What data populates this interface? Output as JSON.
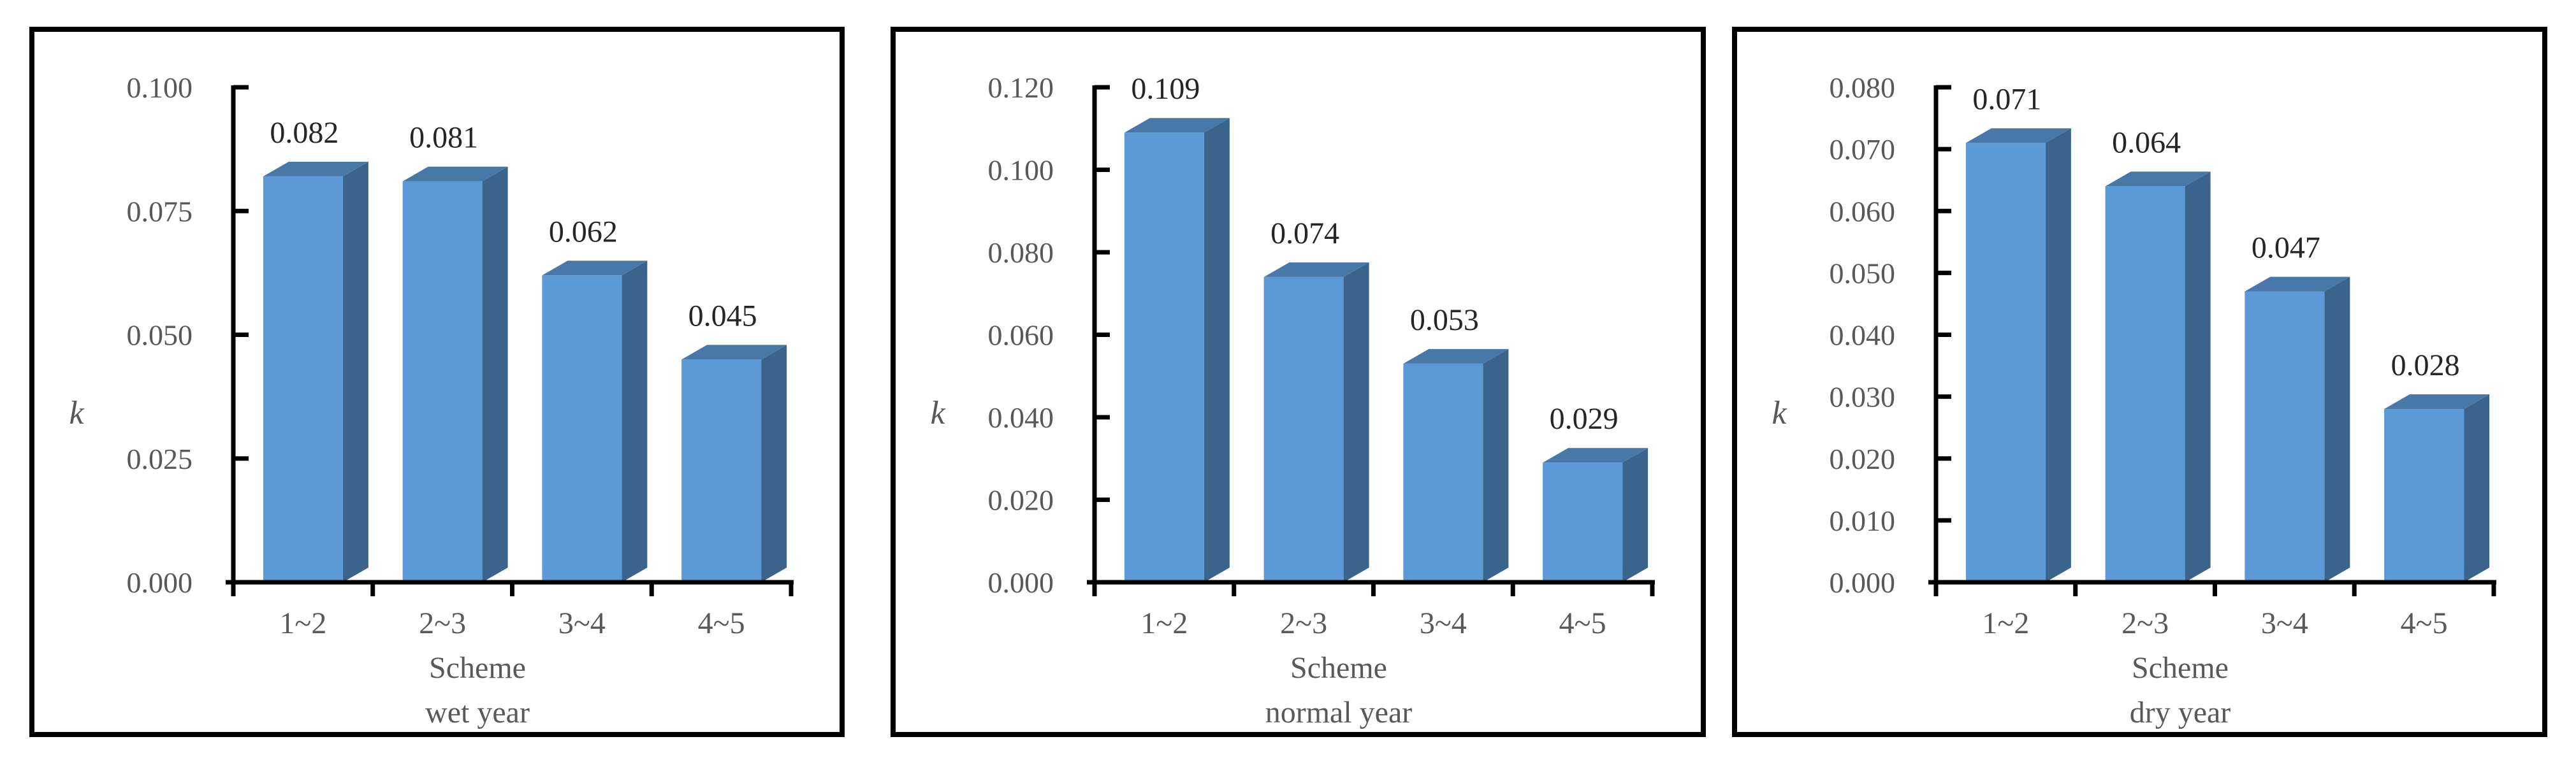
{
  "figure": {
    "background": "#ffffff",
    "panel_border_color": "#000000",
    "axis_color": "#000000",
    "bar_colors": {
      "front": "#5B9AD6",
      "top": "#4778A8",
      "side": "#3A648C"
    },
    "text_colors": {
      "tick_labels": "#595959",
      "value_labels": "#262626",
      "axis_titles": "#595959"
    }
  },
  "chart_data": [
    {
      "type": "bar",
      "name": "wet-year",
      "ylabel": "k",
      "xlabel": "Scheme",
      "subtitle": "wet year",
      "categories": [
        "1~2",
        "2~3",
        "3~4",
        "4~5"
      ],
      "values": [
        0.082,
        0.081,
        0.062,
        0.045
      ],
      "value_labels": [
        "0.082",
        "0.081",
        "0.062",
        "0.045"
      ],
      "ylim": [
        0.0,
        0.1
      ],
      "ytick_step": 0.025,
      "ytick_labels": [
        "0.000",
        "0.025",
        "0.050",
        "0.075",
        "0.100"
      ],
      "grid": "off",
      "legend": "none",
      "bar_style": "3d-box"
    },
    {
      "type": "bar",
      "name": "normal-year",
      "ylabel": "k",
      "xlabel": "Scheme",
      "subtitle": "normal year",
      "categories": [
        "1~2",
        "2~3",
        "3~4",
        "4~5"
      ],
      "values": [
        0.109,
        0.074,
        0.053,
        0.029
      ],
      "value_labels": [
        "0.109",
        "0.074",
        "0.053",
        "0.029"
      ],
      "ylim": [
        0.0,
        0.12
      ],
      "ytick_step": 0.02,
      "ytick_labels": [
        "0.000",
        "0.020",
        "0.040",
        "0.060",
        "0.080",
        "0.100",
        "0.120"
      ],
      "grid": "off",
      "legend": "none",
      "bar_style": "3d-box"
    },
    {
      "type": "bar",
      "name": "dry-year",
      "ylabel": "k",
      "xlabel": "Scheme",
      "subtitle": "dry year",
      "categories": [
        "1~2",
        "2~3",
        "3~4",
        "4~5"
      ],
      "values": [
        0.071,
        0.064,
        0.047,
        0.028
      ],
      "value_labels": [
        "0.071",
        "0.064",
        "0.047",
        "0.028"
      ],
      "ylim": [
        0.0,
        0.08
      ],
      "ytick_step": 0.01,
      "ytick_labels": [
        "0.000",
        "0.010",
        "0.020",
        "0.030",
        "0.040",
        "0.050",
        "0.060",
        "0.070",
        "0.080"
      ],
      "grid": "off",
      "legend": "none",
      "bar_style": "3d-box"
    }
  ]
}
